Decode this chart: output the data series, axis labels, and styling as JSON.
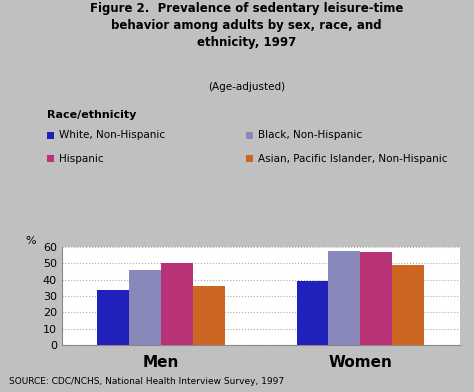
{
  "title": "Figure 2.  Prevalence of sedentary leisure-time\nbehavior among adults by sex, race, and\nethnicity, 1997",
  "subtitle": "(Age-adjusted)",
  "categories": [
    "Men",
    "Women"
  ],
  "series": [
    {
      "label": "White, Non-Hispanic",
      "color": "#2020bb",
      "values": [
        33.5,
        39.0
      ]
    },
    {
      "label": "Black, Non-Hispanic",
      "color": "#8888bb",
      "values": [
        46.0,
        57.5
      ]
    },
    {
      "label": "Hispanic",
      "color": "#bb3377",
      "values": [
        50.0,
        57.0
      ]
    },
    {
      "label": "Asian, Pacific Islander, Non-Hispanic",
      "color": "#cc6622",
      "values": [
        36.0,
        49.0
      ]
    }
  ],
  "ylabel": "%",
  "ylim": [
    0,
    60
  ],
  "yticks": [
    0,
    10,
    20,
    30,
    40,
    50,
    60
  ],
  "grid_color": "#aaaaaa",
  "background_color": "#c0c0c0",
  "plot_bg_color": "#ffffff",
  "source_text": "SOURCE: CDC/NCHS, National Health Interview Survey, 1997",
  "legend_title": "Race/ethnicity",
  "bar_width": 0.08,
  "group_centers": [
    0.25,
    0.75
  ]
}
